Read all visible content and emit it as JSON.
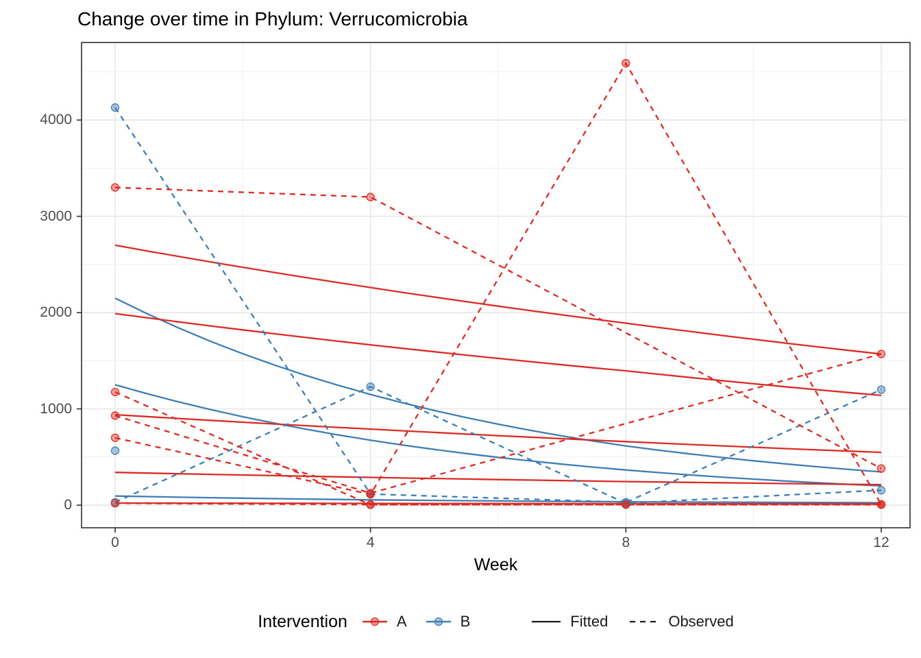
{
  "page": {
    "background": "#ffffff"
  },
  "colors": {
    "group_A": "#dc2b24",
    "group_B": "#3f7eb4",
    "grid_major": "#e4e4e4",
    "grid_minor": "#f0f0f0",
    "panel_border": "#2f2f2f",
    "tick_label": "#4d4d4d",
    "text": "#000000",
    "legend_key": "#1a1a1a"
  },
  "chart_data": {
    "type": "line",
    "title": "Change over time in Phylum: Verrucomicrobia",
    "xlabel": "Week",
    "ylabel": "",
    "x_ticks": [
      0,
      4,
      8,
      12
    ],
    "x_minor": [
      2,
      6,
      10
    ],
    "y_ticks": [
      0,
      1000,
      2000,
      3000,
      4000
    ],
    "y_minor": [
      500,
      1500,
      2500,
      3500,
      4500
    ],
    "xlim": [
      -0.55,
      12.45
    ],
    "ylim": [
      -235,
      4805
    ],
    "grid": "on",
    "legend": {
      "title": "Intervention",
      "position": "bottom",
      "groups": [
        {
          "label": "A",
          "color": "#dc2b24"
        },
        {
          "label": "B",
          "color": "#3f7eb4"
        }
      ],
      "linetypes": [
        {
          "label": "Fitted",
          "style": "solid"
        },
        {
          "label": "Observed",
          "style": "dashed"
        }
      ]
    },
    "series": [
      {
        "name": "A-fitted-1",
        "group": "A",
        "kind": "fitted",
        "points": [
          [
            0,
            2700
          ],
          [
            4,
            2260
          ],
          [
            8,
            1890
          ],
          [
            12,
            1570
          ]
        ]
      },
      {
        "name": "A-fitted-2",
        "group": "A",
        "kind": "fitted",
        "points": [
          [
            0,
            1990
          ],
          [
            4,
            1665
          ],
          [
            8,
            1395
          ],
          [
            12,
            1140
          ]
        ]
      },
      {
        "name": "A-fitted-3",
        "group": "A",
        "kind": "fitted",
        "points": [
          [
            0,
            940
          ],
          [
            4,
            790
          ],
          [
            8,
            660
          ],
          [
            12,
            548
          ]
        ]
      },
      {
        "name": "A-fitted-4",
        "group": "A",
        "kind": "fitted",
        "points": [
          [
            0,
            340
          ],
          [
            4,
            288
          ],
          [
            8,
            245
          ],
          [
            12,
            213
          ]
        ]
      },
      {
        "name": "A-fitted-5",
        "group": "A",
        "kind": "fitted",
        "points": [
          [
            0,
            22
          ],
          [
            4,
            18
          ],
          [
            8,
            15
          ],
          [
            12,
            12
          ]
        ]
      },
      {
        "name": "B-fitted-1",
        "group": "B",
        "kind": "fitted",
        "points": [
          [
            0,
            2150
          ],
          [
            4,
            1150
          ],
          [
            8,
            615
          ],
          [
            12,
            345
          ]
        ]
      },
      {
        "name": "B-fitted-2",
        "group": "B",
        "kind": "fitted",
        "points": [
          [
            0,
            1250
          ],
          [
            4,
            675
          ],
          [
            8,
            365
          ],
          [
            12,
            200
          ]
        ]
      },
      {
        "name": "B-fitted-3",
        "group": "B",
        "kind": "fitted",
        "points": [
          [
            0,
            95
          ],
          [
            4,
            55
          ],
          [
            8,
            35
          ],
          [
            12,
            25
          ]
        ]
      },
      {
        "name": "A-observed-1",
        "group": "A",
        "kind": "observed",
        "points": [
          [
            0,
            3300
          ],
          [
            4,
            3200
          ],
          [
            12,
            380
          ]
        ]
      },
      {
        "name": "A-observed-2",
        "group": "A",
        "kind": "observed",
        "points": [
          [
            0,
            1175
          ],
          [
            4,
            4
          ],
          [
            8,
            6
          ],
          [
            12,
            8
          ]
        ]
      },
      {
        "name": "A-observed-3",
        "group": "A",
        "kind": "observed",
        "points": [
          [
            0,
            930
          ],
          [
            4,
            125
          ],
          [
            12,
            1570
          ]
        ]
      },
      {
        "name": "A-observed-4",
        "group": "A",
        "kind": "observed",
        "points": [
          [
            0,
            700
          ],
          [
            4,
            112
          ],
          [
            8,
            4590
          ],
          [
            12,
            6
          ]
        ]
      },
      {
        "name": "A-observed-5",
        "group": "A",
        "kind": "observed",
        "points": [
          [
            0,
            20
          ],
          [
            4,
            6
          ],
          [
            8,
            5
          ],
          [
            12,
            5
          ]
        ]
      },
      {
        "name": "B-observed-1",
        "group": "B",
        "kind": "observed",
        "points": [
          [
            0,
            4130
          ],
          [
            4,
            115
          ],
          [
            8,
            30
          ],
          [
            12,
            1200
          ]
        ]
      },
      {
        "name": "B-observed-2",
        "group": "B",
        "kind": "observed",
        "points": [
          [
            0,
            30
          ],
          [
            4,
            1230
          ],
          [
            8,
            20
          ],
          [
            12,
            155
          ]
        ]
      },
      {
        "name": "B-observed-3",
        "group": "B",
        "kind": "observed",
        "points": [
          [
            0,
            565
          ]
        ]
      }
    ]
  }
}
